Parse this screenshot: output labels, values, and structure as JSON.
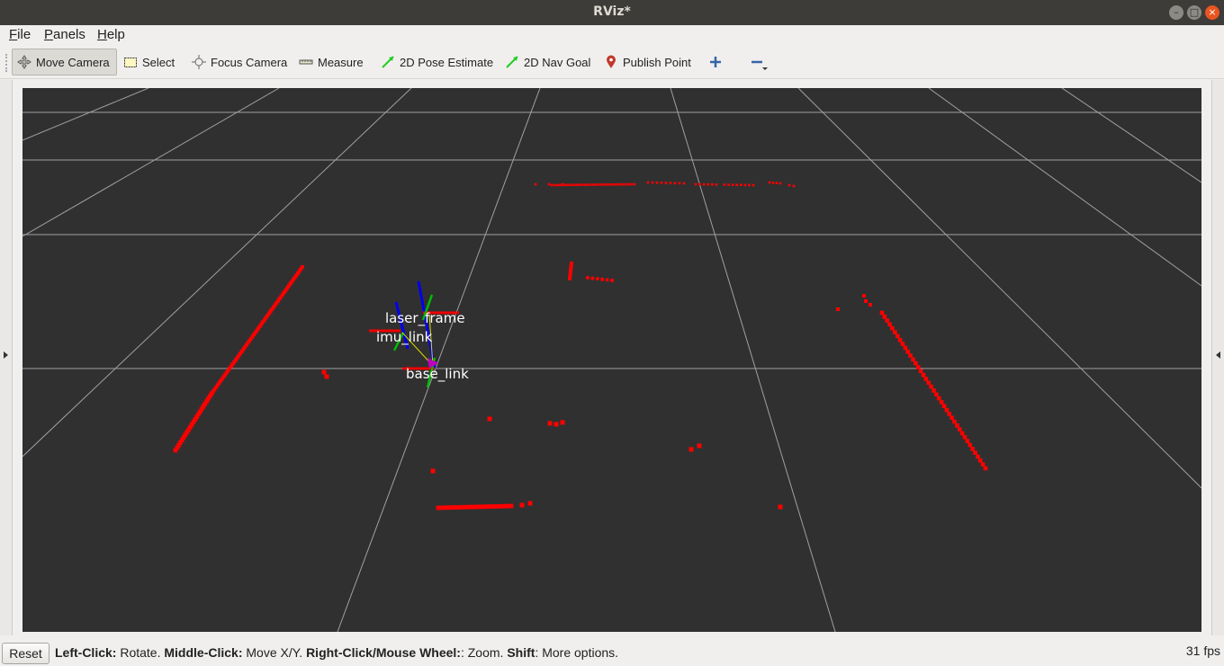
{
  "window": {
    "title": "RViz*",
    "buttons": [
      "minimize",
      "maximize",
      "close"
    ]
  },
  "menu": [
    {
      "label": "File",
      "mnemonic": "F",
      "rest": "ile"
    },
    {
      "label": "Panels",
      "mnemonic": "P",
      "rest": "anels"
    },
    {
      "label": "Help",
      "mnemonic": "H",
      "rest": "elp"
    }
  ],
  "toolbar": {
    "move_camera": "Move Camera",
    "select": "Select",
    "focus_camera": "Focus Camera",
    "measure": "Measure",
    "pose_estimate": "2D Pose Estimate",
    "nav_goal": "2D Nav Goal",
    "publish_point": "Publish Point",
    "add_tool_icon": "plus-icon",
    "remove_tool_icon": "minus-icon"
  },
  "viewport": {
    "background": "#303030",
    "grid_color": "#a0a0a4",
    "laser_color": "#ff0000",
    "frames": {
      "laser": "laser_frame",
      "imu": "imu_link",
      "base": "base_link"
    },
    "axis_colors": {
      "x": "#ff0000",
      "y": "#00c000",
      "z": "#0000ff"
    }
  },
  "status": {
    "reset": "Reset",
    "help": {
      "left_key": "Left-Click:",
      "left_action": " Rotate. ",
      "middle_key": "Middle-Click:",
      "middle_action": " Move X/Y. ",
      "right_key": "Right-Click/Mouse Wheel:",
      "right_action": ": Zoom. ",
      "shift_key": "Shift",
      "shift_action": ": More options."
    },
    "fps": "31 fps"
  }
}
